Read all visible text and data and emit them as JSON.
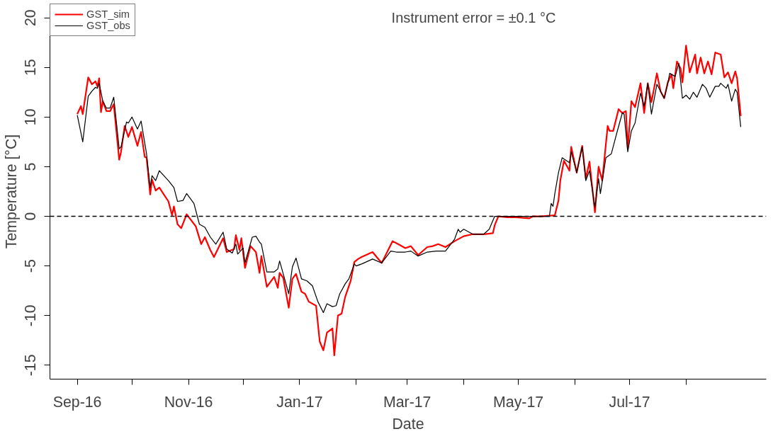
{
  "chart_data": {
    "type": "line",
    "xlabel": "Date",
    "ylabel": "Temperature [°C]",
    "annotations": [
      "Instrument error = ±0.1 °C"
    ],
    "xlim": [
      "2016-08-17",
      "2017-09-14"
    ],
    "ylim": [
      -16.4,
      21.4
    ],
    "xticks": [
      {
        "value": "2016-09-01",
        "label": "Sep-16"
      },
      {
        "value": "2016-10-01",
        "label": null
      },
      {
        "value": "2016-11-01",
        "label": "Nov-16"
      },
      {
        "value": "2016-12-01",
        "label": null
      },
      {
        "value": "2017-01-01",
        "label": "Jan-17"
      },
      {
        "value": "2017-02-01",
        "label": null
      },
      {
        "value": "2017-03-01",
        "label": "Mar-17"
      },
      {
        "value": "2017-04-01",
        "label": null
      },
      {
        "value": "2017-05-01",
        "label": "May-17"
      },
      {
        "value": "2017-06-01",
        "label": null
      },
      {
        "value": "2017-07-01",
        "label": "Jul-17"
      },
      {
        "value": "2017-08-01",
        "label": null
      }
    ],
    "yticks": [
      -15,
      -10,
      -5,
      0,
      5,
      10,
      15,
      20
    ],
    "grid": false,
    "legend": "top left",
    "marker": "none",
    "line_style": "solid",
    "ref_lines": [
      {
        "axis": "y",
        "value": 0,
        "label": null,
        "color": "#000000",
        "line_style": "dashed"
      }
    ],
    "series": [
      {
        "name": "GST_sim",
        "color": "#ff0000",
        "x": [
          "2016-09-01",
          "2016-09-03",
          "2016-09-04",
          "2016-09-07",
          "2016-09-09",
          "2016-09-11",
          "2016-09-12",
          "2016-09-13",
          "2016-09-14",
          "2016-09-15",
          "2016-09-17",
          "2016-09-19",
          "2016-09-21",
          "2016-09-24",
          "2016-09-25",
          "2016-09-27",
          "2016-09-29",
          "2016-10-01",
          "2016-10-04",
          "2016-10-06",
          "2016-10-08",
          "2016-10-09",
          "2016-10-11",
          "2016-10-12",
          "2016-10-14",
          "2016-10-16",
          "2016-10-21",
          "2016-10-23",
          "2016-10-24",
          "2016-10-26",
          "2016-10-28",
          "2016-10-31",
          "2016-11-05",
          "2016-11-08",
          "2016-11-10",
          "2016-11-13",
          "2016-11-15",
          "2016-11-20",
          "2016-11-22",
          "2016-11-26",
          "2016-11-27",
          "2016-11-29",
          "2016-11-30",
          "2016-12-02",
          "2016-12-05",
          "2016-12-08",
          "2016-12-10",
          "2016-12-11",
          "2016-12-14",
          "2016-12-18",
          "2016-12-20",
          "2016-12-21",
          "2016-12-23",
          "2016-12-26",
          "2016-12-28",
          "2016-12-30",
          "2017-01-02",
          "2017-01-04",
          "2017-01-06",
          "2017-01-10",
          "2017-01-12",
          "2017-01-14",
          "2017-01-16",
          "2017-01-19",
          "2017-01-20",
          "2017-01-22",
          "2017-01-24",
          "2017-01-26",
          "2017-01-29",
          "2017-01-31",
          "2017-02-02",
          "2017-02-04",
          "2017-02-10",
          "2017-02-15",
          "2017-02-21",
          "2017-02-24",
          "2017-02-28",
          "2017-03-03",
          "2017-03-07",
          "2017-03-12",
          "2017-03-15",
          "2017-03-18",
          "2017-03-22",
          "2017-03-27",
          "2017-04-01",
          "2017-04-06",
          "2017-04-12",
          "2017-04-17",
          "2017-04-18",
          "2017-04-20",
          "2017-04-25",
          "2017-04-30",
          "2017-05-07",
          "2017-05-09",
          "2017-05-13",
          "2017-05-21",
          "2017-05-23",
          "2017-05-24",
          "2017-05-26",
          "2017-05-29",
          "2017-05-30",
          "2017-06-02",
          "2017-06-05",
          "2017-06-07",
          "2017-06-09",
          "2017-06-12",
          "2017-06-14",
          "2017-06-16",
          "2017-06-19",
          "2017-06-20",
          "2017-06-22",
          "2017-06-25",
          "2017-06-27",
          "2017-06-29",
          "2017-06-30",
          "2017-07-02",
          "2017-07-04",
          "2017-07-07",
          "2017-07-09",
          "2017-07-11",
          "2017-07-13",
          "2017-07-16",
          "2017-07-18",
          "2017-07-20",
          "2017-07-22",
          "2017-07-24",
          "2017-07-25",
          "2017-07-27",
          "2017-07-29",
          "2017-07-30",
          "2017-08-01",
          "2017-08-03",
          "2017-08-06",
          "2017-08-07",
          "2017-08-09",
          "2017-08-11",
          "2017-08-13",
          "2017-08-15",
          "2017-08-17",
          "2017-08-20",
          "2017-08-22",
          "2017-08-24",
          "2017-08-26",
          "2017-08-28",
          "2017-08-29",
          "2017-08-31"
        ],
        "values": [
          10.3,
          11.1,
          10.3,
          14.0,
          13.3,
          13.6,
          13.1,
          13.9,
          10.5,
          11.6,
          10.6,
          10.6,
          11.3,
          5.7,
          6.5,
          9.1,
          8.0,
          9.0,
          7.1,
          8.5,
          6.0,
          5.9,
          2.2,
          3.7,
          2.6,
          2.9,
          1.5,
          0.1,
          1.0,
          -0.8,
          -1.2,
          0.2,
          -1.0,
          -2.8,
          -2.1,
          -3.4,
          -4.1,
          -2.2,
          -3.6,
          -3.3,
          -1.9,
          -3.4,
          -2.2,
          -5.2,
          -3.0,
          -3.6,
          -5.7,
          -4.0,
          -7.1,
          -6.1,
          -7.2,
          -5.7,
          -6.2,
          -9.2,
          -6.3,
          -5.8,
          -7.6,
          -7.8,
          -8.6,
          -9.0,
          -12.6,
          -13.5,
          -11.7,
          -11.3,
          -14.0,
          -10.0,
          -9.8,
          -8.1,
          -6.5,
          -4.6,
          -4.3,
          -4.1,
          -3.6,
          -4.7,
          -2.5,
          -2.8,
          -3.2,
          -3.0,
          -3.9,
          -3.1,
          -3.0,
          -2.8,
          -3.1,
          -2.5,
          -2.0,
          -1.8,
          -1.8,
          -1.7,
          -0.9,
          0.0,
          -0.1,
          -0.1,
          -0.2,
          0.0,
          0.0,
          0.1,
          1.6,
          3.6,
          5.6,
          4.6,
          7.0,
          4.4,
          7.1,
          3.8,
          5.5,
          0.4,
          5.0,
          3.6,
          9.1,
          8.6,
          8.6,
          10.8,
          10.4,
          10.6,
          6.8,
          11.6,
          11.0,
          13.4,
          10.4,
          13.4,
          11.5,
          14.4,
          12.6,
          11.9,
          13.5,
          14.3,
          12.9,
          15.6,
          14.9,
          13.5,
          17.2,
          14.5,
          16.3,
          14.4,
          16.0,
          14.4,
          15.6,
          14.3,
          16.5,
          16.3,
          14.0,
          14.5,
          13.4,
          14.6,
          13.9,
          10.1
        ]
      },
      {
        "name": "GST_obs",
        "color": "#000000",
        "x": [
          "2016-09-01",
          "2016-09-04",
          "2016-09-07",
          "2016-09-09",
          "2016-09-11",
          "2016-09-12",
          "2016-09-13",
          "2016-09-15",
          "2016-09-17",
          "2016-09-19",
          "2016-09-21",
          "2016-09-24",
          "2016-09-25",
          "2016-09-28",
          "2016-09-29",
          "2016-10-01",
          "2016-10-04",
          "2016-10-06",
          "2016-10-09",
          "2016-10-11",
          "2016-10-12",
          "2016-10-14",
          "2016-10-16",
          "2016-10-21",
          "2016-10-24",
          "2016-10-26",
          "2016-10-29",
          "2016-10-31",
          "2016-11-04",
          "2016-11-07",
          "2016-11-10",
          "2016-11-13",
          "2016-11-16",
          "2016-11-20",
          "2016-11-22",
          "2016-11-25",
          "2016-11-27",
          "2016-11-28",
          "2016-12-01",
          "2016-12-02",
          "2016-12-06",
          "2016-12-08",
          "2016-12-10",
          "2016-12-11",
          "2016-12-14",
          "2016-12-18",
          "2016-12-20",
          "2016-12-21",
          "2016-12-23",
          "2016-12-26",
          "2016-12-28",
          "2016-12-30",
          "2017-01-02",
          "2017-01-05",
          "2017-01-08",
          "2017-01-11",
          "2017-01-14",
          "2017-01-16",
          "2017-01-19",
          "2017-01-21",
          "2017-01-23",
          "2017-01-26",
          "2017-01-28",
          "2017-01-31",
          "2017-02-01",
          "2017-02-04",
          "2017-02-10",
          "2017-02-15",
          "2017-02-20",
          "2017-02-23",
          "2017-02-28",
          "2017-03-03",
          "2017-03-07",
          "2017-03-12",
          "2017-03-17",
          "2017-03-22",
          "2017-03-27",
          "2017-03-29",
          "2017-03-30",
          "2017-04-01",
          "2017-04-06",
          "2017-04-12",
          "2017-04-15",
          "2017-04-18",
          "2017-04-25",
          "2017-05-08",
          "2017-05-18",
          "2017-05-19",
          "2017-05-20",
          "2017-05-21",
          "2017-05-23",
          "2017-05-25",
          "2017-05-29",
          "2017-05-30",
          "2017-06-02",
          "2017-06-05",
          "2017-06-07",
          "2017-06-09",
          "2017-06-12",
          "2017-06-14",
          "2017-06-15",
          "2017-06-18",
          "2017-06-21",
          "2017-06-24",
          "2017-06-27",
          "2017-06-28",
          "2017-06-30",
          "2017-07-02",
          "2017-07-04",
          "2017-07-07",
          "2017-07-09",
          "2017-07-11",
          "2017-07-13",
          "2017-07-16",
          "2017-07-20",
          "2017-07-22",
          "2017-07-23",
          "2017-07-26",
          "2017-07-28",
          "2017-07-30",
          "2017-08-01",
          "2017-08-03",
          "2017-08-05",
          "2017-08-07",
          "2017-08-10",
          "2017-08-12",
          "2017-08-14",
          "2017-08-17",
          "2017-08-19",
          "2017-08-20",
          "2017-08-23",
          "2017-08-24",
          "2017-08-26",
          "2017-08-28",
          "2017-08-29",
          "2017-08-31"
        ],
        "values": [
          10.2,
          7.5,
          12.1,
          12.6,
          13.0,
          12.9,
          13.4,
          11.6,
          10.9,
          10.9,
          12.0,
          6.8,
          7.0,
          9.5,
          9.4,
          10.0,
          8.8,
          9.6,
          6.3,
          2.9,
          4.1,
          3.6,
          4.6,
          3.6,
          2.9,
          1.5,
          1.6,
          2.3,
          1.3,
          -0.8,
          -1.1,
          -2.1,
          -2.8,
          -1.6,
          -3.3,
          -3.7,
          -2.8,
          -3.8,
          -3.2,
          -4.7,
          -2.1,
          -2.0,
          -2.6,
          -2.8,
          -5.6,
          -5.6,
          -5.3,
          -4.5,
          -5.8,
          -7.8,
          -5.1,
          -4.2,
          -6.3,
          -6.5,
          -7.0,
          -8.6,
          -9.7,
          -8.8,
          -9.1,
          -9.0,
          -7.8,
          -6.8,
          -6.3,
          -4.8,
          -5.0,
          -4.8,
          -4.3,
          -4.7,
          -3.5,
          -3.6,
          -3.6,
          -3.5,
          -4.0,
          -3.6,
          -3.5,
          -3.5,
          -2.3,
          -1.3,
          -1.6,
          -1.3,
          -1.8,
          -1.8,
          -1.3,
          0.0,
          0.0,
          0.0,
          0.0,
          1.3,
          1.0,
          2.3,
          4.4,
          5.9,
          5.4,
          6.5,
          4.4,
          7.0,
          3.6,
          4.6,
          0.9,
          3.8,
          2.3,
          5.9,
          6.3,
          8.4,
          10.4,
          10.3,
          6.5,
          8.6,
          9.4,
          12.4,
          11.1,
          13.4,
          10.3,
          13.3,
          11.9,
          13.4,
          14.4,
          14.1,
          15.4,
          11.9,
          12.2,
          11.8,
          12.5,
          12.0,
          13.3,
          12.9,
          12.0,
          13.1,
          13.1,
          13.4,
          12.9,
          13.3,
          11.6,
          12.8,
          12.5,
          9.0
        ]
      }
    ]
  }
}
